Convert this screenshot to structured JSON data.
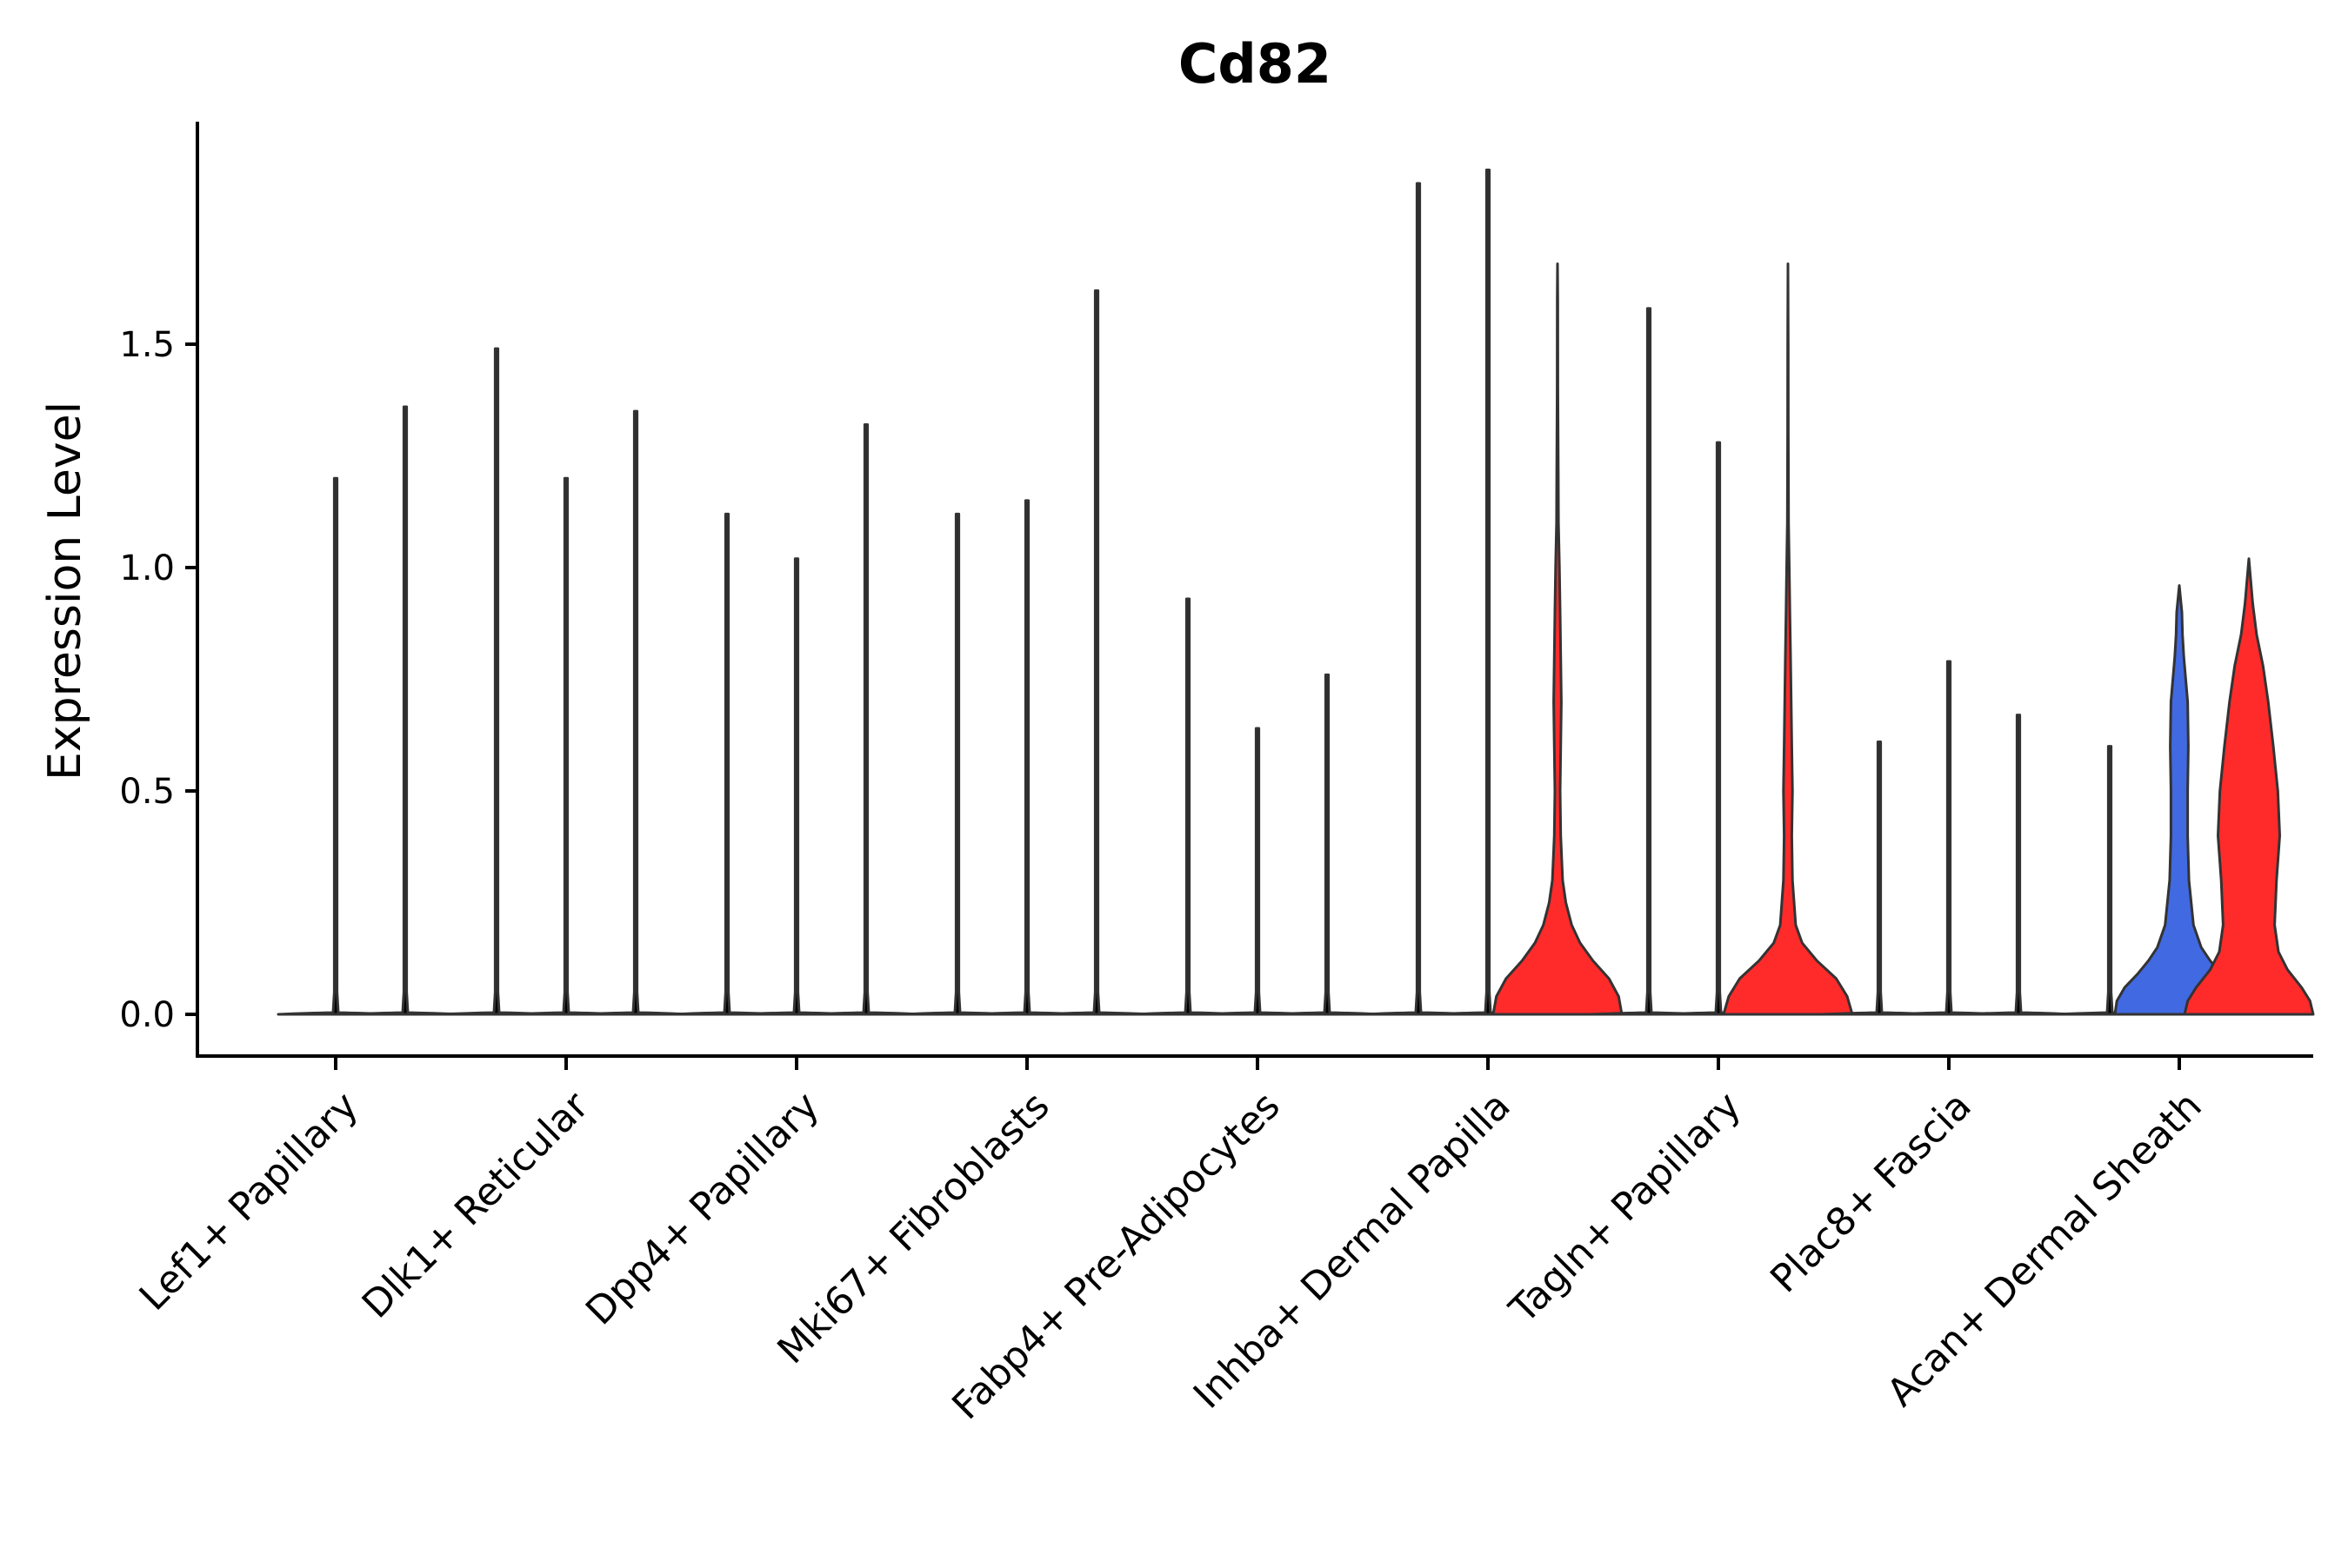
{
  "chart_data": {
    "type": "violin",
    "title": "Cd82",
    "xlabel": "",
    "ylabel": "Expression Level",
    "ylim": [
      -0.095,
      1.995
    ],
    "yticks": [
      0.0,
      0.5,
      1.0,
      1.5
    ],
    "ytick_labels": [
      "0.0",
      "0.5",
      "1.0",
      "1.5"
    ],
    "groups_per_category": 3,
    "categories": [
      "Lef1+ Papillary",
      "Dlk1+ Reticular",
      "Dpp4+ Papillary",
      "Mki67+ Fibroblasts",
      "Fabp4+ Pre-Adipocytes",
      "Inhba+ Dermal Papilla",
      "Tagln+ Papillary",
      "Plac8+ Fascia",
      "Acan+ Dermal Sheath"
    ],
    "colors": {
      "thin": "#000000",
      "blue": "#4169e1",
      "red": "#ff2a2a",
      "outline": "#333333"
    },
    "violins": [
      {
        "category": 0,
        "slot": 0,
        "max": 1.2,
        "fill": "thin"
      },
      {
        "category": 0,
        "slot": 1,
        "max": 1.36,
        "fill": "thin"
      },
      {
        "category": 1,
        "slot": -1,
        "max": 1.49,
        "fill": "thin"
      },
      {
        "category": 1,
        "slot": 0,
        "max": 1.2,
        "fill": "thin"
      },
      {
        "category": 1,
        "slot": 1,
        "max": 1.35,
        "fill": "thin"
      },
      {
        "category": 2,
        "slot": -1,
        "max": 1.12,
        "fill": "thin"
      },
      {
        "category": 2,
        "slot": 0,
        "max": 1.02,
        "fill": "thin"
      },
      {
        "category": 2,
        "slot": 1,
        "max": 1.32,
        "fill": "thin"
      },
      {
        "category": 3,
        "slot": -1,
        "max": 1.12,
        "fill": "thin"
      },
      {
        "category": 3,
        "slot": 0,
        "max": 1.15,
        "fill": "thin"
      },
      {
        "category": 3,
        "slot": 1,
        "max": 1.62,
        "fill": "thin"
      },
      {
        "category": 4,
        "slot": -1,
        "max": 0.93,
        "fill": "thin"
      },
      {
        "category": 4,
        "slot": 0,
        "max": 0.64,
        "fill": "thin"
      },
      {
        "category": 4,
        "slot": 1,
        "max": 0.76,
        "fill": "thin"
      },
      {
        "category": 5,
        "slot": -1,
        "max": 1.86,
        "fill": "thin"
      },
      {
        "category": 5,
        "slot": 0,
        "max": 1.89,
        "fill": "thin"
      },
      {
        "category": 5,
        "slot": 1,
        "max": 1.68,
        "fill": "red",
        "profile": [
          [
            0,
            1.0
          ],
          [
            0.04,
            0.95
          ],
          [
            0.08,
            0.8
          ],
          [
            0.12,
            0.55
          ],
          [
            0.16,
            0.35
          ],
          [
            0.2,
            0.22
          ],
          [
            0.25,
            0.13
          ],
          [
            0.3,
            0.08
          ],
          [
            0.4,
            0.05
          ],
          [
            0.5,
            0.04
          ],
          [
            0.6,
            0.05
          ],
          [
            0.7,
            0.06
          ],
          [
            0.8,
            0.05
          ],
          [
            0.9,
            0.04
          ],
          [
            1.0,
            0.03
          ],
          [
            1.1,
            0.015
          ],
          [
            1.2,
            0.012
          ],
          [
            1.4,
            0.006
          ],
          [
            1.6,
            0.004
          ],
          [
            1.68,
            0
          ]
        ]
      },
      {
        "category": 6,
        "slot": -1,
        "max": 1.58,
        "fill": "thin"
      },
      {
        "category": 6,
        "slot": 0,
        "max": 1.28,
        "fill": "thin"
      },
      {
        "category": 6,
        "slot": 1,
        "max": 1.68,
        "fill": "red",
        "profile": [
          [
            0,
            1.0
          ],
          [
            0.04,
            0.92
          ],
          [
            0.08,
            0.75
          ],
          [
            0.12,
            0.45
          ],
          [
            0.16,
            0.22
          ],
          [
            0.2,
            0.12
          ],
          [
            0.3,
            0.07
          ],
          [
            0.4,
            0.06
          ],
          [
            0.5,
            0.07
          ],
          [
            0.6,
            0.06
          ],
          [
            0.7,
            0.05
          ],
          [
            0.8,
            0.04
          ],
          [
            0.9,
            0.03
          ],
          [
            1.0,
            0.02
          ],
          [
            1.1,
            0.01
          ],
          [
            1.3,
            0.006
          ],
          [
            1.5,
            0.004
          ],
          [
            1.68,
            0
          ]
        ]
      },
      {
        "category": 7,
        "slot": -1,
        "max": 0.61,
        "fill": "thin"
      },
      {
        "category": 7,
        "slot": 0,
        "max": 0.79,
        "fill": "thin"
      },
      {
        "category": 7,
        "slot": 1,
        "max": 0.67,
        "fill": "thin"
      },
      {
        "category": 8,
        "slot": -1,
        "max": 0.6,
        "fill": "thin"
      },
      {
        "category": 8,
        "slot": 0,
        "max": 0.96,
        "fill": "blue",
        "profile": [
          [
            0,
            1.0
          ],
          [
            0.03,
            0.97
          ],
          [
            0.06,
            0.85
          ],
          [
            0.09,
            0.65
          ],
          [
            0.12,
            0.48
          ],
          [
            0.15,
            0.34
          ],
          [
            0.2,
            0.22
          ],
          [
            0.3,
            0.15
          ],
          [
            0.4,
            0.13
          ],
          [
            0.5,
            0.13
          ],
          [
            0.6,
            0.14
          ],
          [
            0.7,
            0.13
          ],
          [
            0.75,
            0.1
          ],
          [
            0.8,
            0.07
          ],
          [
            0.85,
            0.05
          ],
          [
            0.9,
            0.04
          ],
          [
            0.96,
            0
          ]
        ]
      },
      {
        "category": 8,
        "slot": 1,
        "max": 1.02,
        "fill": "red",
        "profile": [
          [
            0,
            1.0
          ],
          [
            0.03,
            0.95
          ],
          [
            0.06,
            0.82
          ],
          [
            0.1,
            0.6
          ],
          [
            0.14,
            0.46
          ],
          [
            0.2,
            0.4
          ],
          [
            0.3,
            0.43
          ],
          [
            0.4,
            0.48
          ],
          [
            0.5,
            0.45
          ],
          [
            0.6,
            0.38
          ],
          [
            0.7,
            0.3
          ],
          [
            0.78,
            0.22
          ],
          [
            0.85,
            0.12
          ],
          [
            0.92,
            0.06
          ],
          [
            0.97,
            0.03
          ],
          [
            1.02,
            0
          ]
        ]
      }
    ]
  }
}
